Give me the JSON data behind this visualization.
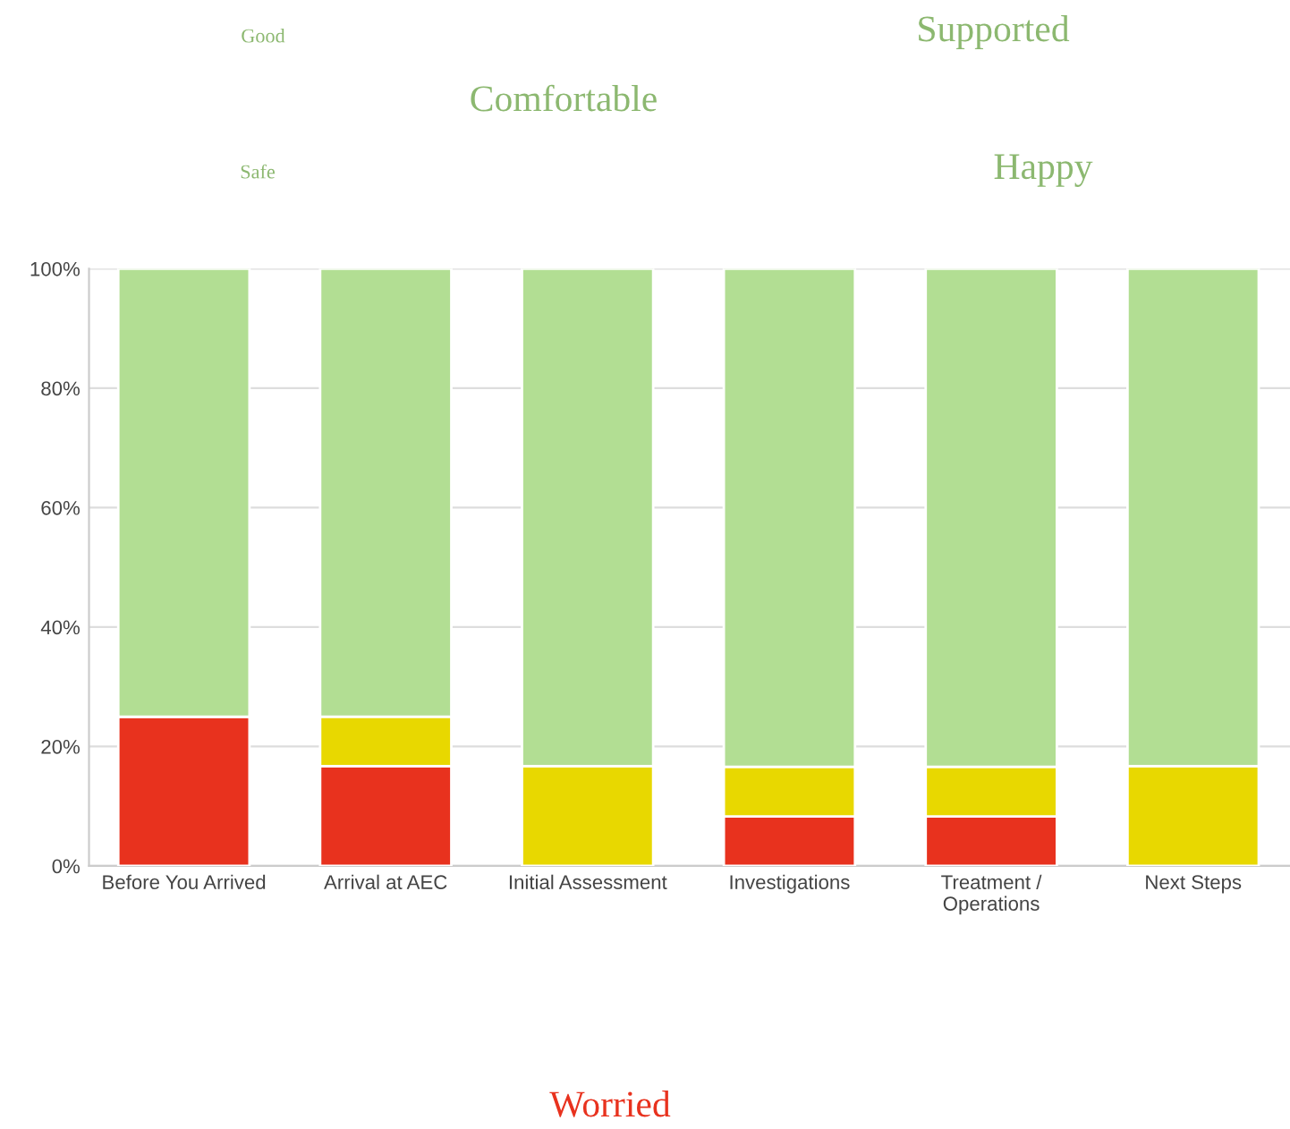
{
  "chart_data": {
    "type": "bar",
    "stacked": true,
    "categories": [
      "Before You Arrived",
      "Arrival at AEC",
      "Initial Assessment",
      "Investigations",
      "Treatment /\nOperations",
      "Next Steps"
    ],
    "series": [
      {
        "color": "#e8321e",
        "values": [
          25,
          16.7,
          0,
          8.3,
          8.3,
          0
        ]
      },
      {
        "color": "#e8d800",
        "values": [
          0,
          8.3,
          16.7,
          8.3,
          8.3,
          16.7
        ]
      },
      {
        "color": "#b2de93",
        "values": [
          75,
          75,
          83.3,
          83.4,
          83.4,
          83.3
        ]
      }
    ],
    "ylim": [
      0,
      100
    ],
    "yticks": [
      {
        "value": 0,
        "label": "0%"
      },
      {
        "value": 20,
        "label": "20%"
      },
      {
        "value": 40,
        "label": "40%"
      },
      {
        "value": 60,
        "label": "60%"
      },
      {
        "value": 80,
        "label": "80%"
      },
      {
        "value": 100,
        "label": "100%"
      }
    ],
    "grid": "y",
    "annotations": [
      "Good",
      "Supported",
      "Comfortable",
      "Safe",
      "Happy",
      "Worried"
    ]
  }
}
